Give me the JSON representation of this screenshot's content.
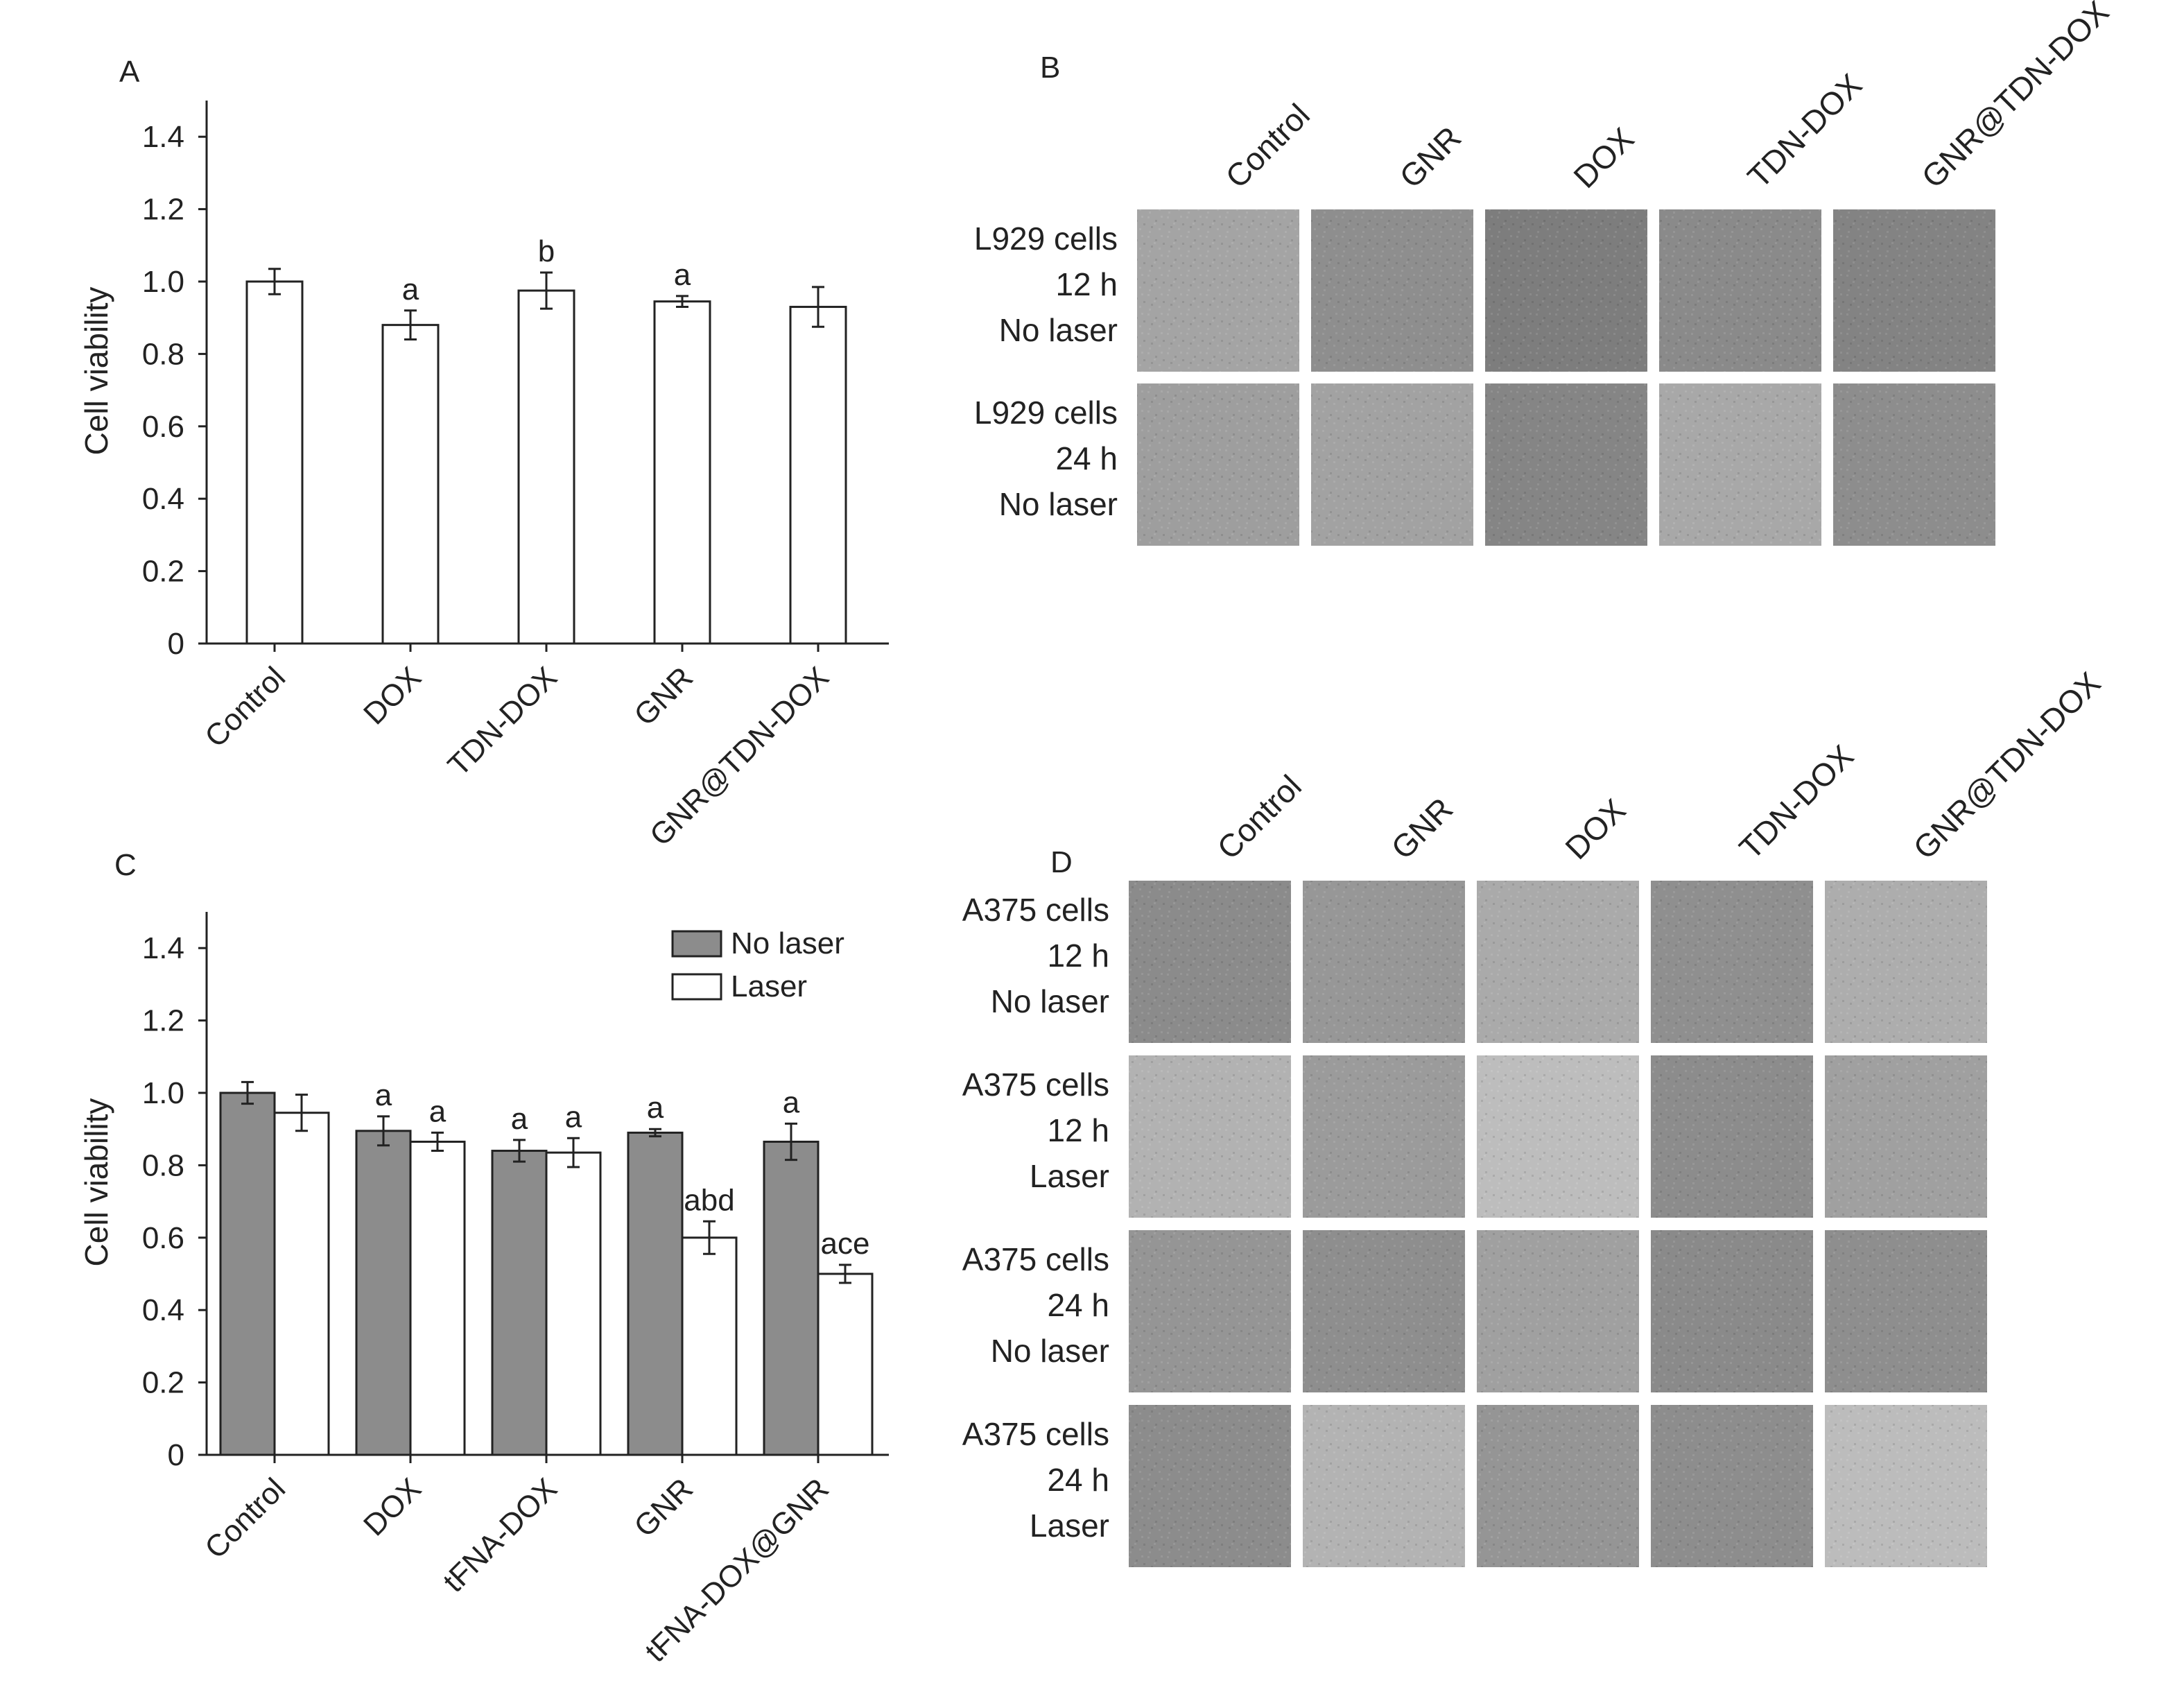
{
  "chart_data": [
    {
      "id": "A",
      "panel_label": "A",
      "type": "bar",
      "ylabel": "Cell viability",
      "ylim": [
        0,
        1.5
      ],
      "yticks": [
        "0",
        "0.2",
        "0.4",
        "0.6",
        "0.8",
        "1.0",
        "1.2",
        "1.4"
      ],
      "categories": [
        "Control",
        "DOX",
        "TDN-DOX",
        "GNR",
        "GNR@TDN-DOX"
      ],
      "series": [
        {
          "values": [
            1.0,
            0.88,
            0.975,
            0.945,
            0.93
          ],
          "errors": [
            0.035,
            0.04,
            0.05,
            0.015,
            0.055
          ],
          "fill": "#ffffff",
          "annotations": [
            "",
            "a",
            "b",
            "a",
            ""
          ]
        }
      ]
    },
    {
      "id": "C",
      "panel_label": "C",
      "type": "bar",
      "ylabel": "Cell viability",
      "ylim": [
        0,
        1.5
      ],
      "yticks": [
        "0",
        "0.2",
        "0.4",
        "0.6",
        "0.8",
        "1.0",
        "1.2",
        "1.4"
      ],
      "categories": [
        "Control",
        "DOX",
        "tFNA-DOX",
        "GNR",
        "tFNA-DOX@GNR"
      ],
      "legend_position": "top-right",
      "series": [
        {
          "name": "No laser",
          "fill": "#8c8c8c",
          "values": [
            1.0,
            0.895,
            0.84,
            0.89,
            0.865
          ],
          "errors": [
            0.03,
            0.04,
            0.03,
            0.01,
            0.05
          ],
          "annotations": [
            "",
            "a",
            "a",
            "a",
            "a"
          ]
        },
        {
          "name": "Laser",
          "fill": "#ffffff",
          "values": [
            0.945,
            0.865,
            0.835,
            0.6,
            0.5
          ],
          "errors": [
            0.05,
            0.025,
            0.04,
            0.045,
            0.025
          ],
          "annotations": [
            "",
            "a",
            "a",
            "abd",
            "ace"
          ]
        }
      ]
    }
  ],
  "panel_b": {
    "label": "B",
    "columns": [
      "Control",
      "GNR",
      "DOX",
      "TDN-DOX",
      "GNR@TDN-DOX"
    ],
    "rows": [
      {
        "lines": [
          "L929 cells",
          "12 h",
          "No laser"
        ],
        "tones": [
          "#a4a4a4",
          "#8e8e8e",
          "#7d7d7d",
          "#8a8a8a",
          "#838383"
        ]
      },
      {
        "lines": [
          "L929 cells",
          "24 h",
          "No laser"
        ],
        "tones": [
          "#9e9e9e",
          "#a2a2a2",
          "#858585",
          "#a8a8a8",
          "#8d8d8d"
        ]
      }
    ]
  },
  "panel_d": {
    "label": "D",
    "columns": [
      "Control",
      "GNR",
      "DOX",
      "TDN-DOX",
      "GNR@TDN-DOX"
    ],
    "rows": [
      {
        "lines": [
          "A375 cells",
          "12 h",
          "No laser"
        ],
        "tones": [
          "#8b8b8b",
          "#979797",
          "#aaaaaa",
          "#8f8f8f",
          "#adadad"
        ]
      },
      {
        "lines": [
          "A375 cells",
          "12 h",
          "Laser"
        ],
        "tones": [
          "#b2b2b2",
          "#9b9b9b",
          "#bdbdbd",
          "#8c8c8c",
          "#a0a0a0"
        ]
      },
      {
        "lines": [
          "A375 cells",
          "24 h",
          "No laser"
        ],
        "tones": [
          "#959595",
          "#8e8e8e",
          "#a0a0a0",
          "#8a8a8a",
          "#8e8e8e"
        ]
      },
      {
        "lines": [
          "A375 cells",
          "24 h",
          "Laser"
        ],
        "tones": [
          "#8c8c8c",
          "#b3b3b3",
          "#959595",
          "#8d8d8d",
          "#bcbcbc"
        ]
      }
    ]
  }
}
